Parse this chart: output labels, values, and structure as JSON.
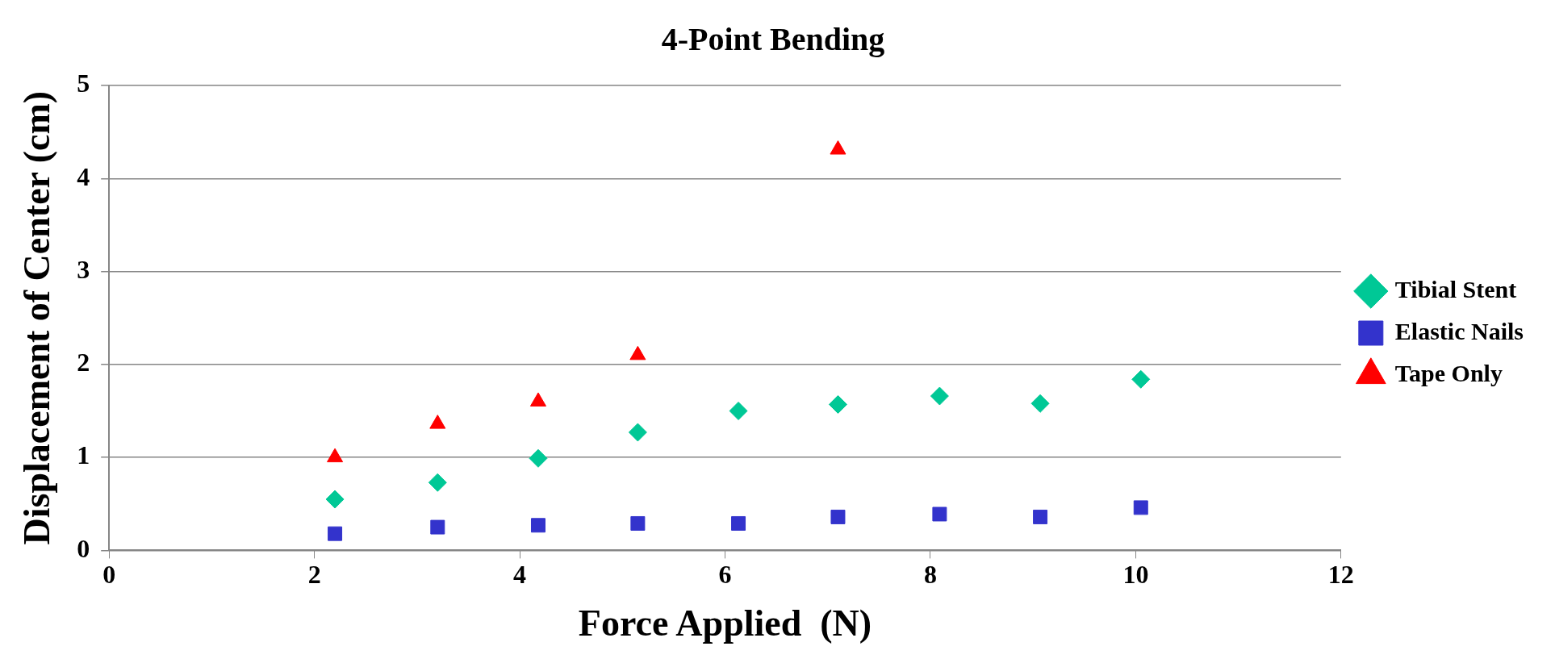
{
  "chart_data": {
    "type": "scatter",
    "title": "4-Point Bending",
    "xlabel": "Force Applied  (N)",
    "ylabel": "Displacement of Center (cm)",
    "xlim": [
      0,
      12
    ],
    "xticks": [
      0,
      2,
      4,
      6,
      8,
      10,
      12
    ],
    "ylim": [
      0,
      5
    ],
    "yticks": [
      0,
      1,
      2,
      3,
      4,
      5
    ],
    "grid": "y",
    "legend": "right",
    "series": [
      {
        "name": "Tibial Stent",
        "color": "#00c896",
        "marker": "diamond",
        "x": [
          2.2,
          3.2,
          4.18,
          5.15,
          6.13,
          7.1,
          8.09,
          9.07,
          10.05
        ],
        "values": [
          0.55,
          0.73,
          0.99,
          1.27,
          1.5,
          1.57,
          1.66,
          1.58,
          1.84
        ]
      },
      {
        "name": "Elastic Nails",
        "color": "#3333cc",
        "marker": "square",
        "x": [
          2.2,
          3.2,
          4.18,
          5.15,
          6.13,
          7.1,
          8.09,
          9.07,
          10.05
        ],
        "values": [
          0.18,
          0.25,
          0.27,
          0.29,
          0.29,
          0.36,
          0.39,
          0.36,
          0.46
        ]
      },
      {
        "name": "Tape Only",
        "color": "#ff0000",
        "marker": "triangle",
        "x": [
          2.2,
          3.2,
          4.18,
          5.15,
          7.1
        ],
        "values": [
          1.0,
          1.36,
          1.6,
          2.1,
          4.31
        ]
      }
    ]
  }
}
